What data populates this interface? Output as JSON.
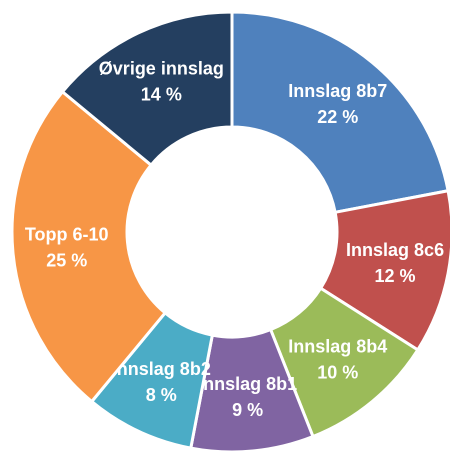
{
  "chart_data": {
    "type": "donut",
    "categories": [
      "Innslag 8b7",
      "Innslag 8c6",
      "Innslag 8b4",
      "Innslag 8b1",
      "Innslag 8b2",
      "Topp 6-10",
      "Øvrige innslag"
    ],
    "values": [
      22,
      12,
      10,
      9,
      8,
      25,
      14
    ],
    "value_labels": [
      "22 %",
      "12 %",
      "10 %",
      "9 %",
      "8 %",
      "25 %",
      "14 %"
    ],
    "colors": [
      "#4f81bd",
      "#c0504d",
      "#9bbb59",
      "#8064a2",
      "#4bacc6",
      "#f79646",
      "#243f60"
    ]
  }
}
